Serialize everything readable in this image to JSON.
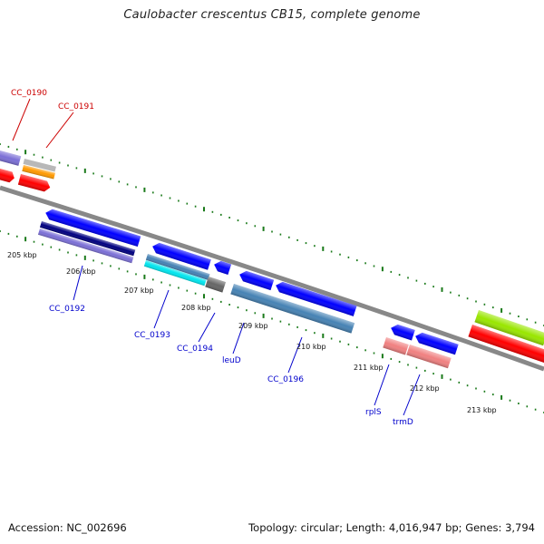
{
  "header": {
    "title": "Caulobacter crescentus CB15, complete genome"
  },
  "footer": {
    "accession": "Accession: NC_002696",
    "summary": "Topology: circular; Length: 4,016,947 bp; Genes: 3,794"
  },
  "scale": {
    "labels": [
      "205 kbp",
      "206 kbp",
      "207 kbp",
      "208 kbp",
      "209 kbp",
      "210 kbp",
      "211 kbp",
      "212 kbp",
      "213 kbp"
    ]
  },
  "genes": [
    {
      "name": "CC_0190",
      "color": "#cc0000"
    },
    {
      "name": "CC_0191",
      "color": "#cc0000"
    },
    {
      "name": "CC_0192",
      "color": "#0000cc"
    },
    {
      "name": "CC_0193",
      "color": "#0000cc"
    },
    {
      "name": "CC_0194",
      "color": "#0000cc"
    },
    {
      "name": "leuD",
      "color": "#0000cc"
    },
    {
      "name": "CC_0196",
      "color": "#0000cc"
    },
    {
      "name": "rplS",
      "color": "#0000cc"
    },
    {
      "name": "trmD",
      "color": "#0000cc"
    }
  ],
  "colors": {
    "backbone": "#808080",
    "ticks": "#1a7a1a",
    "cds_blue": "#0000ff",
    "cds_red": "#ff0000",
    "lightgreen": "#99e600",
    "purple": "#7b6fd6",
    "navy": "#000080",
    "steelblue": "#4682b4",
    "cyan": "#00e5ee",
    "salmon": "#f08080",
    "orange": "#ff9900",
    "silver": "#b0b0b0",
    "darkgrey": "#666666"
  }
}
